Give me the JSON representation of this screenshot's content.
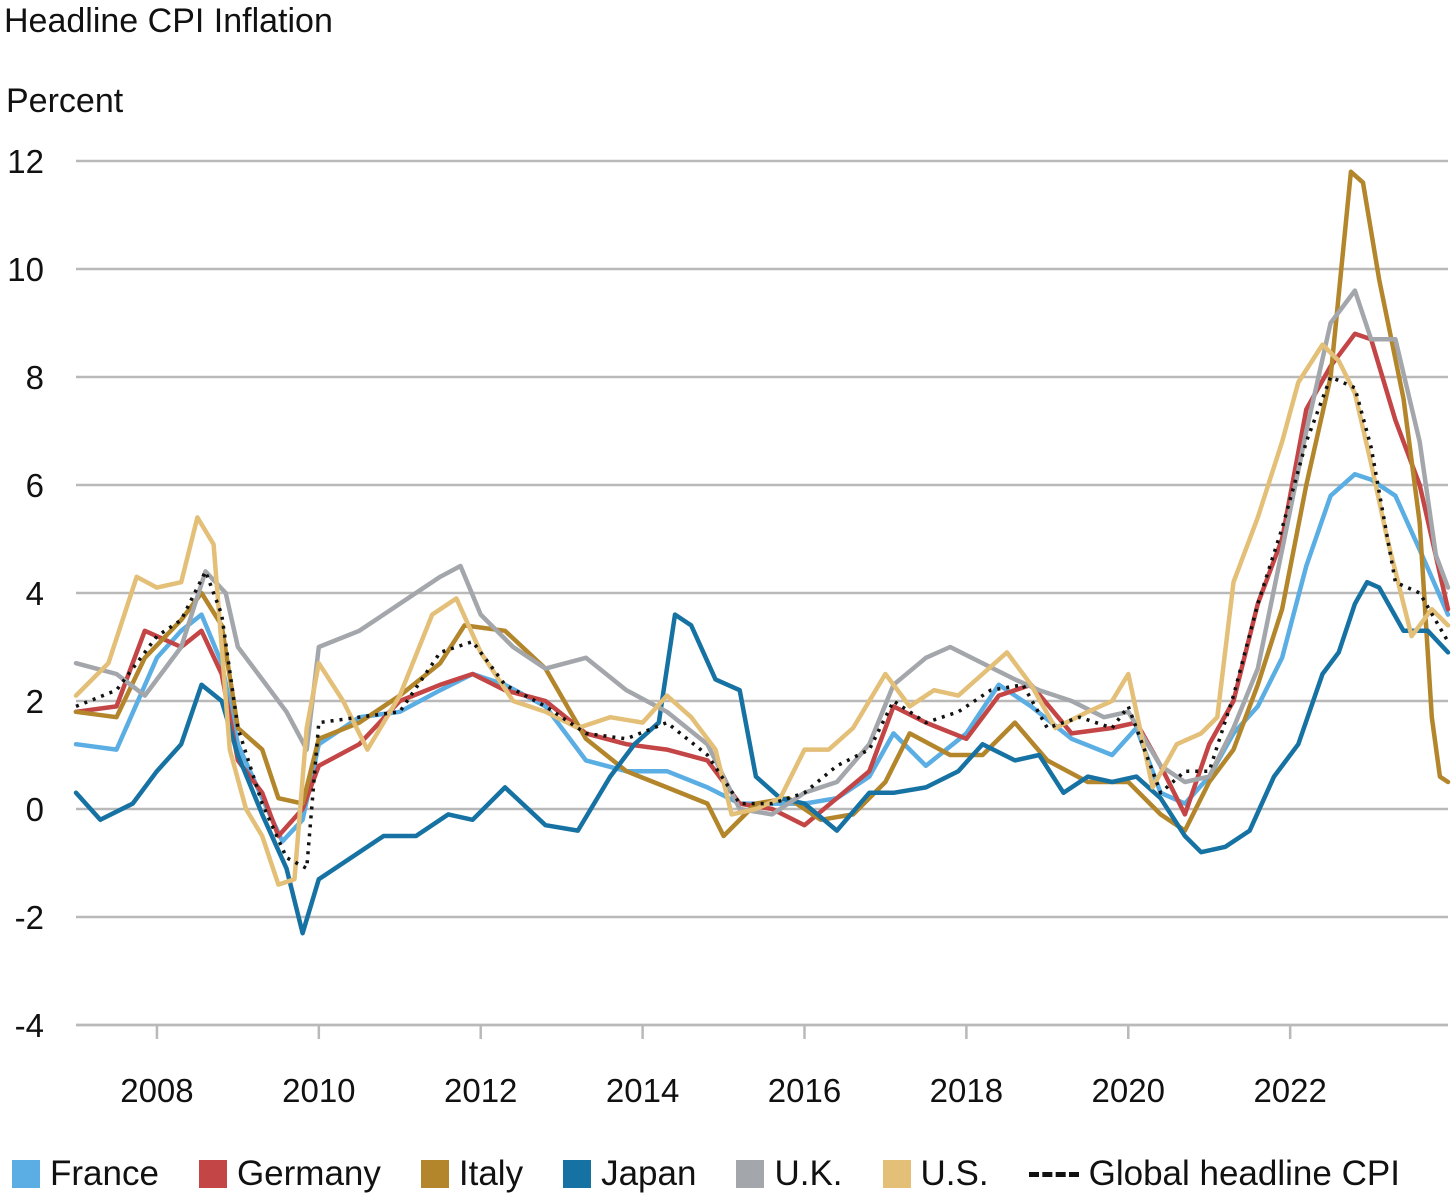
{
  "chart_data": {
    "type": "line",
    "title": "Headline CPI Inflation",
    "ylabel": "Percent",
    "xlabel": "",
    "ylim": [
      -4,
      12
    ],
    "yticks": [
      12,
      10,
      8,
      6,
      4,
      2,
      0,
      -2,
      -4
    ],
    "xlim": [
      2007.0,
      2023.95
    ],
    "xticks": [
      2008,
      2010,
      2012,
      2014,
      2016,
      2018,
      2020,
      2022
    ],
    "grid": "horizontal",
    "legend_position": "bottom",
    "series": [
      {
        "name": "France",
        "color": "#5aaee3",
        "style": "solid",
        "x": [
          2007.0,
          2007.5,
          2008.0,
          2008.3,
          2008.55,
          2008.8,
          2009.0,
          2009.3,
          2009.55,
          2009.8,
          2010.0,
          2010.5,
          2011.0,
          2011.5,
          2011.9,
          2012.3,
          2012.8,
          2013.3,
          2013.8,
          2014.3,
          2014.8,
          2015.2,
          2015.6,
          2016.0,
          2016.4,
          2016.8,
          2017.1,
          2017.5,
          2018.0,
          2018.4,
          2018.8,
          2019.3,
          2019.8,
          2020.1,
          2020.4,
          2020.7,
          2021.0,
          2021.3,
          2021.6,
          2021.9,
          2022.2,
          2022.5,
          2022.8,
          2023.0,
          2023.3,
          2023.6,
          2023.95
        ],
        "y": [
          1.2,
          1.1,
          2.8,
          3.3,
          3.6,
          2.7,
          1.2,
          0.2,
          -0.6,
          -0.2,
          1.2,
          1.7,
          1.8,
          2.2,
          2.5,
          2.3,
          1.9,
          0.9,
          0.7,
          0.7,
          0.4,
          0.1,
          0.1,
          0.1,
          0.2,
          0.6,
          1.4,
          0.8,
          1.4,
          2.3,
          1.9,
          1.3,
          1.0,
          1.5,
          0.3,
          0.1,
          0.6,
          1.4,
          1.9,
          2.8,
          4.5,
          5.8,
          6.2,
          6.1,
          5.8,
          4.8,
          3.6
        ]
      },
      {
        "name": "Germany",
        "color": "#c44545",
        "style": "solid",
        "x": [
          2007.0,
          2007.5,
          2007.85,
          2008.3,
          2008.55,
          2008.8,
          2009.0,
          2009.3,
          2009.5,
          2009.8,
          2010.0,
          2010.5,
          2011.0,
          2011.5,
          2011.9,
          2012.3,
          2012.8,
          2013.3,
          2013.8,
          2014.3,
          2014.8,
          2015.2,
          2015.6,
          2016.0,
          2016.4,
          2016.8,
          2017.1,
          2017.5,
          2018.0,
          2018.4,
          2018.8,
          2019.3,
          2019.8,
          2020.1,
          2020.4,
          2020.7,
          2021.0,
          2021.3,
          2021.6,
          2021.9,
          2022.2,
          2022.5,
          2022.8,
          2023.0,
          2023.3,
          2023.6,
          2023.95
        ],
        "y": [
          1.8,
          1.9,
          3.3,
          3.0,
          3.3,
          2.5,
          0.9,
          0.3,
          -0.5,
          0.0,
          0.8,
          1.2,
          2.0,
          2.3,
          2.5,
          2.2,
          2.0,
          1.4,
          1.2,
          1.1,
          0.9,
          0.1,
          0.0,
          -0.3,
          0.2,
          0.7,
          1.9,
          1.6,
          1.3,
          2.1,
          2.3,
          1.4,
          1.5,
          1.6,
          0.8,
          -0.1,
          1.2,
          2.0,
          3.8,
          5.0,
          7.4,
          8.2,
          8.8,
          8.7,
          7.2,
          6.0,
          3.7
        ]
      },
      {
        "name": "Italy",
        "color": "#b3862b",
        "style": "solid",
        "x": [
          2007.0,
          2007.5,
          2007.85,
          2008.3,
          2008.55,
          2008.8,
          2009.0,
          2009.3,
          2009.5,
          2009.8,
          2010.0,
          2010.5,
          2011.0,
          2011.5,
          2011.8,
          2012.3,
          2012.8,
          2013.3,
          2013.8,
          2014.3,
          2014.8,
          2015.0,
          2015.4,
          2015.8,
          2016.2,
          2016.6,
          2017.0,
          2017.3,
          2017.8,
          2018.2,
          2018.6,
          2019.0,
          2019.5,
          2020.0,
          2020.4,
          2020.7,
          2021.0,
          2021.3,
          2021.6,
          2021.9,
          2022.2,
          2022.5,
          2022.75,
          2022.9,
          2023.1,
          2023.4,
          2023.6,
          2023.75,
          2023.85,
          2023.95
        ],
        "y": [
          1.8,
          1.7,
          2.8,
          3.5,
          4.0,
          3.4,
          1.5,
          1.1,
          0.2,
          0.1,
          1.3,
          1.6,
          2.1,
          2.7,
          3.4,
          3.3,
          2.6,
          1.3,
          0.7,
          0.4,
          0.1,
          -0.5,
          0.1,
          0.2,
          -0.2,
          -0.1,
          0.5,
          1.4,
          1.0,
          1.0,
          1.6,
          0.9,
          0.5,
          0.5,
          -0.1,
          -0.4,
          0.5,
          1.1,
          2.3,
          3.7,
          6.0,
          8.0,
          11.8,
          11.6,
          9.8,
          7.6,
          5.3,
          1.7,
          0.6,
          0.5
        ]
      },
      {
        "name": "Japan",
        "color": "#1672a3",
        "style": "solid",
        "x": [
          2007.0,
          2007.3,
          2007.7,
          2008.0,
          2008.3,
          2008.55,
          2008.8,
          2009.0,
          2009.3,
          2009.6,
          2009.8,
          2010.0,
          2010.4,
          2010.8,
          2011.2,
          2011.6,
          2011.9,
          2012.3,
          2012.8,
          2013.2,
          2013.6,
          2013.9,
          2014.2,
          2014.4,
          2014.6,
          2014.9,
          2015.2,
          2015.4,
          2015.7,
          2016.0,
          2016.4,
          2016.8,
          2017.1,
          2017.5,
          2017.9,
          2018.2,
          2018.6,
          2018.9,
          2019.2,
          2019.5,
          2019.8,
          2020.1,
          2020.4,
          2020.7,
          2020.9,
          2021.2,
          2021.5,
          2021.8,
          2022.1,
          2022.4,
          2022.6,
          2022.8,
          2022.95,
          2023.1,
          2023.4,
          2023.7,
          2023.95
        ],
        "y": [
          0.3,
          -0.2,
          0.1,
          0.7,
          1.2,
          2.3,
          2.0,
          1.0,
          -0.1,
          -1.1,
          -2.3,
          -1.3,
          -0.9,
          -0.5,
          -0.5,
          -0.1,
          -0.2,
          0.4,
          -0.3,
          -0.4,
          0.6,
          1.2,
          1.6,
          3.6,
          3.4,
          2.4,
          2.2,
          0.6,
          0.2,
          0.1,
          -0.4,
          0.3,
          0.3,
          0.4,
          0.7,
          1.2,
          0.9,
          1.0,
          0.3,
          0.6,
          0.5,
          0.6,
          0.2,
          -0.5,
          -0.8,
          -0.7,
          -0.4,
          0.6,
          1.2,
          2.5,
          2.9,
          3.8,
          4.2,
          4.1,
          3.3,
          3.3,
          2.9
        ]
      },
      {
        "name": "U.K.",
        "color": "#a3a6ab",
        "style": "solid",
        "x": [
          2007.0,
          2007.5,
          2007.85,
          2008.3,
          2008.6,
          2008.85,
          2009.0,
          2009.3,
          2009.6,
          2009.85,
          2010.0,
          2010.5,
          2011.0,
          2011.5,
          2011.75,
          2012.0,
          2012.4,
          2012.8,
          2013.3,
          2013.8,
          2014.3,
          2014.8,
          2015.2,
          2015.6,
          2016.0,
          2016.4,
          2016.8,
          2017.1,
          2017.5,
          2017.8,
          2018.2,
          2018.6,
          2018.9,
          2019.3,
          2019.7,
          2020.0,
          2020.4,
          2020.7,
          2021.0,
          2021.3,
          2021.6,
          2021.9,
          2022.2,
          2022.5,
          2022.8,
          2023.0,
          2023.3,
          2023.6,
          2023.8,
          2023.95
        ],
        "y": [
          2.7,
          2.5,
          2.1,
          3.0,
          4.4,
          4.0,
          3.0,
          2.4,
          1.8,
          1.1,
          3.0,
          3.3,
          3.8,
          4.3,
          4.5,
          3.6,
          3.0,
          2.6,
          2.8,
          2.2,
          1.8,
          1.2,
          0.0,
          -0.1,
          0.3,
          0.5,
          1.2,
          2.3,
          2.8,
          3.0,
          2.7,
          2.4,
          2.2,
          2.0,
          1.7,
          1.8,
          0.8,
          0.5,
          0.6,
          1.5,
          2.6,
          4.8,
          7.0,
          9.0,
          9.6,
          8.7,
          8.7,
          6.8,
          4.7,
          4.1
        ]
      },
      {
        "name": "U.S.",
        "color": "#e3bf77",
        "style": "solid",
        "x": [
          2007.0,
          2007.4,
          2007.75,
          2008.0,
          2008.3,
          2008.5,
          2008.7,
          2008.9,
          2009.1,
          2009.3,
          2009.5,
          2009.7,
          2009.85,
          2010.0,
          2010.3,
          2010.6,
          2011.0,
          2011.4,
          2011.7,
          2012.0,
          2012.4,
          2012.8,
          2013.2,
          2013.6,
          2014.0,
          2014.3,
          2014.6,
          2014.9,
          2015.1,
          2015.4,
          2015.7,
          2016.0,
          2016.3,
          2016.6,
          2017.0,
          2017.3,
          2017.6,
          2017.9,
          2018.2,
          2018.5,
          2018.8,
          2019.1,
          2019.5,
          2019.8,
          2020.0,
          2020.3,
          2020.6,
          2020.9,
          2021.1,
          2021.3,
          2021.6,
          2021.9,
          2022.1,
          2022.4,
          2022.6,
          2022.8,
          2023.0,
          2023.2,
          2023.5,
          2023.75,
          2023.95
        ],
        "y": [
          2.1,
          2.7,
          4.3,
          4.1,
          4.2,
          5.4,
          4.9,
          1.1,
          0.0,
          -0.5,
          -1.4,
          -1.3,
          1.5,
          2.7,
          2.0,
          1.1,
          2.1,
          3.6,
          3.9,
          2.9,
          2.0,
          1.8,
          1.5,
          1.7,
          1.6,
          2.1,
          1.7,
          1.1,
          -0.1,
          0.0,
          0.2,
          1.1,
          1.1,
          1.5,
          2.5,
          1.9,
          2.2,
          2.1,
          2.5,
          2.9,
          2.3,
          1.5,
          1.8,
          2.0,
          2.5,
          0.4,
          1.2,
          1.4,
          1.7,
          4.2,
          5.4,
          6.8,
          7.9,
          8.6,
          8.3,
          7.7,
          6.4,
          5.0,
          3.2,
          3.7,
          3.4
        ]
      },
      {
        "name": "Global headline CPI",
        "color": "#111111",
        "style": "dotted",
        "x": [
          2007.0,
          2007.5,
          2008.0,
          2008.3,
          2008.6,
          2008.8,
          2009.0,
          2009.3,
          2009.6,
          2009.85,
          2010.0,
          2010.5,
          2011.0,
          2011.5,
          2011.9,
          2012.3,
          2012.8,
          2013.3,
          2013.8,
          2014.3,
          2014.8,
          2015.2,
          2015.6,
          2016.0,
          2016.4,
          2016.8,
          2017.1,
          2017.5,
          2017.9,
          2018.3,
          2018.7,
          2019.0,
          2019.4,
          2019.8,
          2020.0,
          2020.4,
          2020.7,
          2021.0,
          2021.3,
          2021.6,
          2021.9,
          2022.2,
          2022.5,
          2022.8,
          2023.0,
          2023.3,
          2023.6,
          2023.95
        ],
        "y": [
          1.9,
          2.2,
          3.2,
          3.5,
          4.4,
          3.6,
          1.5,
          0.1,
          -0.9,
          -1.1,
          1.6,
          1.7,
          1.8,
          2.9,
          3.1,
          2.3,
          1.9,
          1.4,
          1.3,
          1.6,
          1.0,
          0.1,
          0.1,
          0.3,
          0.8,
          1.1,
          2.0,
          1.6,
          1.8,
          2.2,
          2.3,
          1.5,
          1.7,
          1.5,
          1.9,
          0.3,
          0.7,
          0.7,
          2.1,
          3.8,
          5.2,
          6.8,
          8.0,
          7.8,
          6.7,
          4.2,
          4.0,
          3.1
        ]
      }
    ]
  }
}
